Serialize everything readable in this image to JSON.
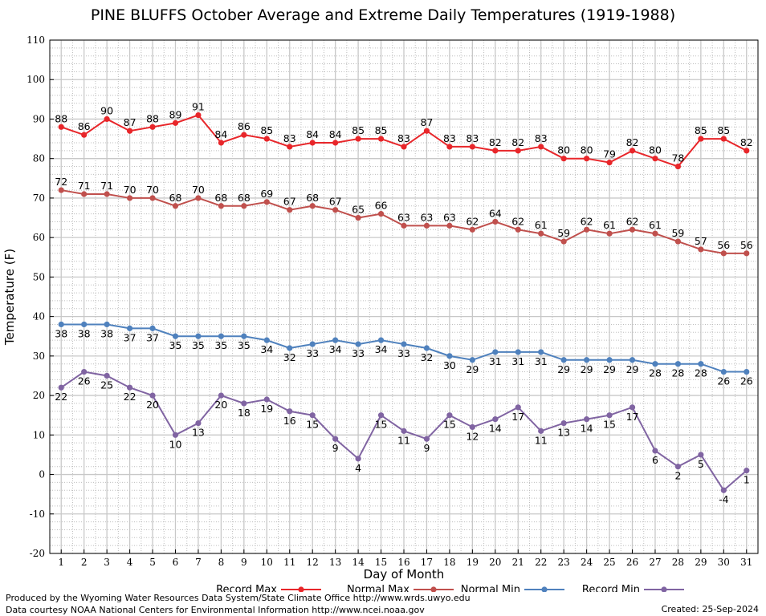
{
  "chart_data": {
    "type": "line",
    "title": "PINE BLUFFS October Average and Extreme Daily Temperatures (1919-1988)",
    "xlabel": "Day of Month",
    "ylabel": "Temperature (F)",
    "ylim": [
      -20,
      110
    ],
    "y_ticks": [
      -20,
      -10,
      0,
      10,
      20,
      30,
      40,
      50,
      60,
      70,
      80,
      90,
      100,
      110
    ],
    "x": [
      1,
      2,
      3,
      4,
      5,
      6,
      7,
      8,
      9,
      10,
      11,
      12,
      13,
      14,
      15,
      16,
      17,
      18,
      19,
      20,
      21,
      22,
      23,
      24,
      25,
      26,
      27,
      28,
      29,
      30,
      31
    ],
    "grid": true,
    "legend_position": "bottom",
    "series": [
      {
        "name": "Record Max",
        "color": "#e8262a",
        "label_pos": "above",
        "values": [
          88,
          86,
          90,
          87,
          88,
          89,
          91,
          84,
          86,
          85,
          83,
          84,
          84,
          85,
          85,
          83,
          87,
          83,
          83,
          82,
          82,
          83,
          80,
          80,
          79,
          82,
          80,
          78,
          85,
          85,
          82
        ]
      },
      {
        "name": "Normal Max",
        "color": "#c0504d",
        "label_pos": "above",
        "values": [
          72,
          71,
          71,
          70,
          70,
          68,
          70,
          68,
          68,
          69,
          67,
          68,
          67,
          65,
          66,
          63,
          63,
          63,
          62,
          64,
          62,
          61,
          59,
          62,
          61,
          62,
          61,
          59,
          57,
          56,
          56
        ]
      },
      {
        "name": "Normal Min",
        "color": "#4f81bd",
        "label_pos": "below",
        "values": [
          38,
          38,
          38,
          37,
          37,
          35,
          35,
          35,
          35,
          34,
          32,
          33,
          34,
          33,
          34,
          33,
          32,
          30,
          29,
          31,
          31,
          31,
          29,
          29,
          29,
          29,
          28,
          28,
          28,
          26,
          26
        ]
      },
      {
        "name": "Record Min",
        "color": "#8064a2",
        "label_pos": "below",
        "values": [
          22,
          26,
          25,
          22,
          20,
          10,
          13,
          20,
          18,
          19,
          16,
          15,
          9,
          4,
          15,
          11,
          9,
          15,
          12,
          14,
          17,
          11,
          13,
          14,
          15,
          17,
          6,
          2,
          5,
          -4,
          1
        ]
      }
    ]
  },
  "footer": {
    "credit_line_1": "Produced by the Wyoming Water Resources Data System/State Climate Office http://www.wrds.uwyo.edu",
    "credit_line_2": "Data courtesy NOAA National Centers for Environmental Information http://www.ncei.noaa.gov",
    "created": "Created:  25-Sep-2024"
  }
}
